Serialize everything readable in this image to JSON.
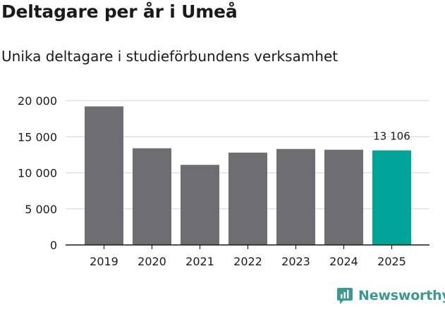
{
  "title": "Deltagare per år i Umeå",
  "subtitle": "Unika deltagare i studieförbundens verksamhet",
  "brand": "Newsworthy",
  "colors": {
    "bar": "#6e6d72",
    "highlight": "#00a499",
    "grid": "#dcdcdc",
    "axis": "#1a1a1a",
    "brand": "#3a9a91"
  },
  "chart_data": {
    "type": "bar",
    "categories": [
      "2019",
      "2020",
      "2021",
      "2022",
      "2023",
      "2024",
      "2025"
    ],
    "values": [
      19200,
      13400,
      11100,
      12800,
      13300,
      13200,
      13106
    ],
    "highlight_index": 6,
    "data_labels": {
      "6": "13 106"
    },
    "ylim": [
      0,
      20000
    ],
    "yticks": [
      0,
      5000,
      10000,
      15000,
      20000
    ],
    "ytick_labels": [
      "0",
      "5 000",
      "10 000",
      "15 000",
      "20 000"
    ],
    "grid": true,
    "legend": false
  }
}
